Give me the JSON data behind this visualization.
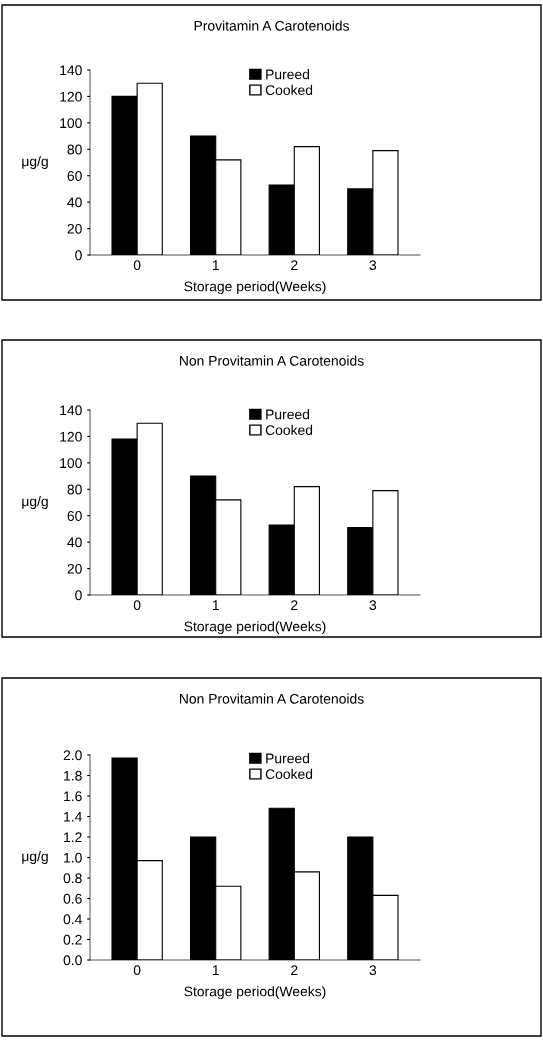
{
  "chart_data": [
    {
      "type": "bar",
      "title": "Provitamin A Carotenoids",
      "xlabel": "Storage period(Weeks)",
      "ylabel": "μg/g",
      "categories": [
        "0",
        "1",
        "2",
        "3"
      ],
      "series": [
        {
          "name": "Pureed",
          "color": "#000000",
          "values": [
            120,
            90,
            53,
            50
          ]
        },
        {
          "name": "Cooked",
          "color": "#ffffff",
          "values": [
            130,
            72,
            82,
            79
          ]
        }
      ],
      "ylim": [
        0,
        140
      ],
      "yticks": [
        0,
        20,
        40,
        60,
        80,
        100,
        120,
        140
      ],
      "legend": "top right",
      "grid": false
    },
    {
      "type": "bar",
      "title": "Non Provitamin A Carotenoids",
      "xlabel": "Storage period(Weeks)",
      "ylabel": "μg/g",
      "categories": [
        "0",
        "1",
        "2",
        "3"
      ],
      "series": [
        {
          "name": "Pureed",
          "color": "#000000",
          "values": [
            118,
            90,
            53,
            51
          ]
        },
        {
          "name": "Cooked",
          "color": "#ffffff",
          "values": [
            130,
            72,
            82,
            79
          ]
        }
      ],
      "ylim": [
        0,
        140
      ],
      "yticks": [
        0,
        20,
        40,
        60,
        80,
        100,
        120,
        140
      ],
      "legend": "top right",
      "grid": false
    },
    {
      "type": "bar",
      "title": "Non Provitamin A Carotenoids",
      "xlabel": "Storage period(Weeks)",
      "ylabel": "μg/g",
      "categories": [
        "0",
        "1",
        "2",
        "3"
      ],
      "series": [
        {
          "name": "Pureed",
          "color": "#000000",
          "values": [
            1.97,
            1.2,
            1.48,
            1.2
          ]
        },
        {
          "name": "Cooked",
          "color": "#ffffff",
          "values": [
            0.97,
            0.72,
            0.86,
            0.63
          ]
        }
      ],
      "ylim": [
        0,
        2.0
      ],
      "yticks": [
        {
          "value": 0,
          "label": "0.0"
        },
        {
          "value": 0.2,
          "label": "0.2"
        },
        {
          "value": 0.4,
          "label": "0.4"
        },
        {
          "value": 0.6,
          "label": "0.6"
        },
        {
          "value": 0.8,
          "label": "0.8"
        },
        {
          "value": 1.0,
          "label": "1.0"
        },
        {
          "value": 1.2,
          "label": "1.2"
        },
        {
          "value": 1.4,
          "label": "1.4"
        },
        {
          "value": 1.6,
          "label": "1.6"
        },
        {
          "value": 1.8,
          "label": "1.8"
        },
        {
          "value": 2.0,
          "label": "2.0"
        }
      ],
      "legend": "top right",
      "grid": false
    }
  ]
}
